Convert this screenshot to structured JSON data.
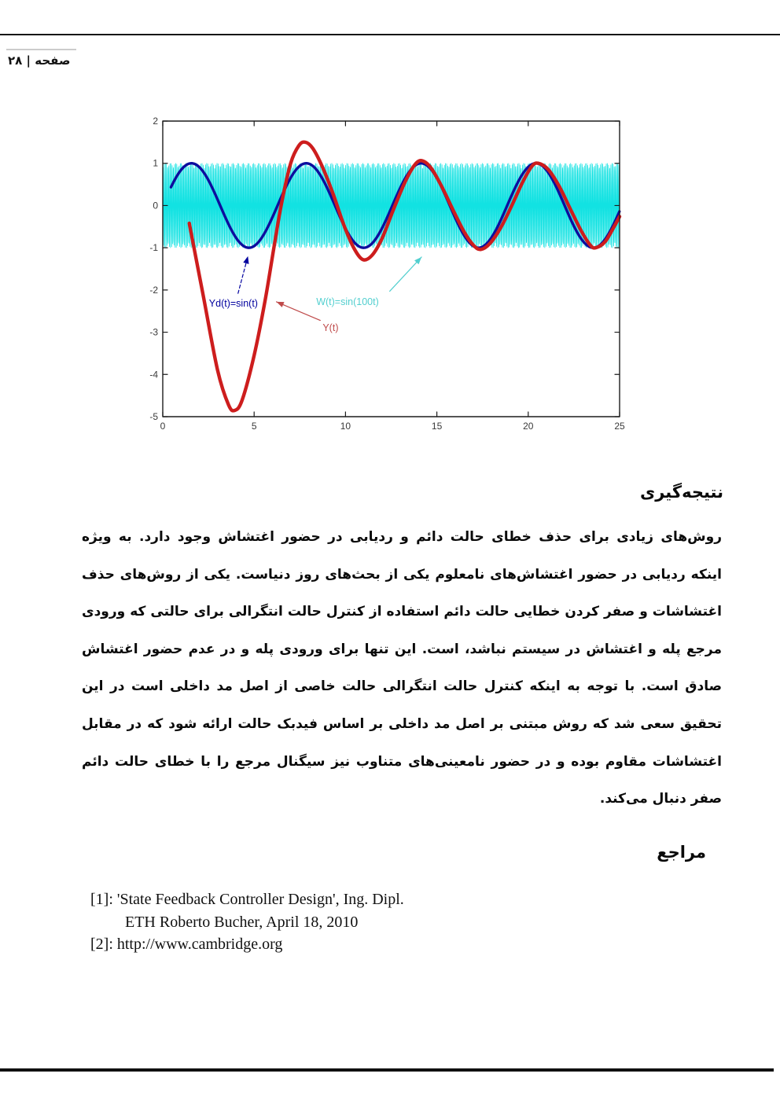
{
  "header": {
    "page_label": "صفحه | ۲۸"
  },
  "conclusion": {
    "heading": "نتیجه‌گیری",
    "lines": [
      "روش‌های زیادی برای حذف خطای حالت دائم و ردیابی در حضور اغتشاش وجود دارد. به ویژه",
      "اینکه ردیابی در حضور اغتشاش‌های نامعلوم یکی از بحث‌های روز دنیاست. یکی از روش‌های حذف",
      "اغتشاشات و صفر کردن خطایی حالت دائم استفاده از کنترل حالت انتگرالی برای حالتی که ورودی",
      "مرجع پله و اغتشاش در سیستم نباشد، است. این تنها برای ورودی پله و در عدم حضور اغتشاش",
      "صادق است. با توجه به اینکه کنترل حالت انتگرالی حالت خاصی از اصل مد داخلی است در این",
      "تحقیق سعی شد که روش مبتنی بر اصل مد داخلی بر اساس فیدبک حالت ارائه شود که در مقابل",
      "اغتشاشات مقاوم بوده و در حضور نامعینی‌های متناوب نیز سیگنال مرجع را با خطای حالت دائم",
      "صفر دنبال می‌کند."
    ]
  },
  "references": {
    "heading": "مراجع",
    "lines": [
      "[1]: 'State Feedback Controller Design', Ing.  Dipl.",
      "ETH  Roberto Bucher, April 18, 2010",
      "[2]: http://www.cambridge.org"
    ]
  },
  "chart_data": {
    "type": "line",
    "title": "",
    "xlabel": "",
    "ylabel": "",
    "xlim": [
      0,
      25
    ],
    "ylim": [
      -5,
      2
    ],
    "xticks": [
      0,
      5,
      10,
      15,
      20,
      25
    ],
    "yticks": [
      2,
      1,
      0,
      -1,
      -2,
      -3,
      -4,
      -5
    ],
    "grid": false,
    "frame_color": "#1c1c1c",
    "tick_label_color": "#3a3a3a",
    "series": [
      {
        "name": "W(t)=sin(100t)",
        "formula": "sin(100t)",
        "color": "#12e2e2",
        "width": 0.75,
        "t_start": 0,
        "t_end": 25,
        "dt": 0.0101
      },
      {
        "name": "Yd(t)=sin(t)",
        "formula": "sin(t)",
        "color": "#0d0d9e",
        "width": 3.4,
        "t_start": 0.45,
        "t_end": 25,
        "dt": 0.02
      },
      {
        "name": "Y(t)",
        "color": "#cd1d1d",
        "width": 4.4,
        "points": [
          [
            1.45,
            -0.42
          ],
          [
            2.2,
            -2.1
          ],
          [
            3.0,
            -3.9
          ],
          [
            3.6,
            -4.72
          ],
          [
            3.95,
            -4.85
          ],
          [
            4.35,
            -4.6
          ],
          [
            5.0,
            -3.55
          ],
          [
            5.6,
            -2.25
          ],
          [
            6.1,
            -0.95
          ],
          [
            6.5,
            0.05
          ],
          [
            7.0,
            1.0
          ],
          [
            7.45,
            1.42
          ],
          [
            7.8,
            1.5
          ],
          [
            8.2,
            1.36
          ],
          [
            8.7,
            0.95
          ],
          [
            9.3,
            0.3
          ],
          [
            9.9,
            -0.45
          ],
          [
            10.45,
            -1.0
          ],
          [
            10.95,
            -1.28
          ],
          [
            11.45,
            -1.18
          ],
          [
            12.0,
            -0.78
          ],
          [
            12.6,
            -0.12
          ],
          [
            13.25,
            0.55
          ],
          [
            13.8,
            0.97
          ],
          [
            14.2,
            1.06
          ],
          [
            14.7,
            0.88
          ],
          [
            15.3,
            0.42
          ],
          [
            15.9,
            -0.12
          ],
          [
            16.5,
            -0.63
          ],
          [
            17.0,
            -0.94
          ],
          [
            17.4,
            -1.04
          ],
          [
            17.9,
            -0.9
          ],
          [
            18.5,
            -0.52
          ],
          [
            19.1,
            0.0
          ],
          [
            19.7,
            0.56
          ],
          [
            20.2,
            0.93
          ],
          [
            20.55,
            1.0
          ],
          [
            21.1,
            0.85
          ],
          [
            21.7,
            0.45
          ],
          [
            22.3,
            -0.08
          ],
          [
            22.9,
            -0.6
          ],
          [
            23.4,
            -0.94
          ],
          [
            23.7,
            -1.0
          ],
          [
            24.2,
            -0.86
          ],
          [
            24.7,
            -0.5
          ],
          [
            25.0,
            -0.26
          ]
        ]
      }
    ],
    "annotations": [
      {
        "label": "Yd(t)=sin(t)",
        "color": "#00009e",
        "text_x": 2.53,
        "text_y": -2.39,
        "arrow": {
          "x1": 4.12,
          "y1": -2.08,
          "x2": 4.66,
          "y2": -1.2,
          "dashed": true
        }
      },
      {
        "label": "W(t)=sin(100t)",
        "color": "#52cfcf",
        "text_x": 8.4,
        "text_y": -2.36,
        "arrow": {
          "x1": 12.42,
          "y1": -2.03,
          "x2": 14.16,
          "y2": -1.22,
          "dashed": false
        }
      },
      {
        "label": "Y(t)",
        "color": "#bf4a4a",
        "text_x": 8.75,
        "text_y": -2.97,
        "arrow": {
          "x1": 8.62,
          "y1": -2.72,
          "x2": 6.22,
          "y2": -2.28,
          "dashed": false
        }
      }
    ]
  }
}
